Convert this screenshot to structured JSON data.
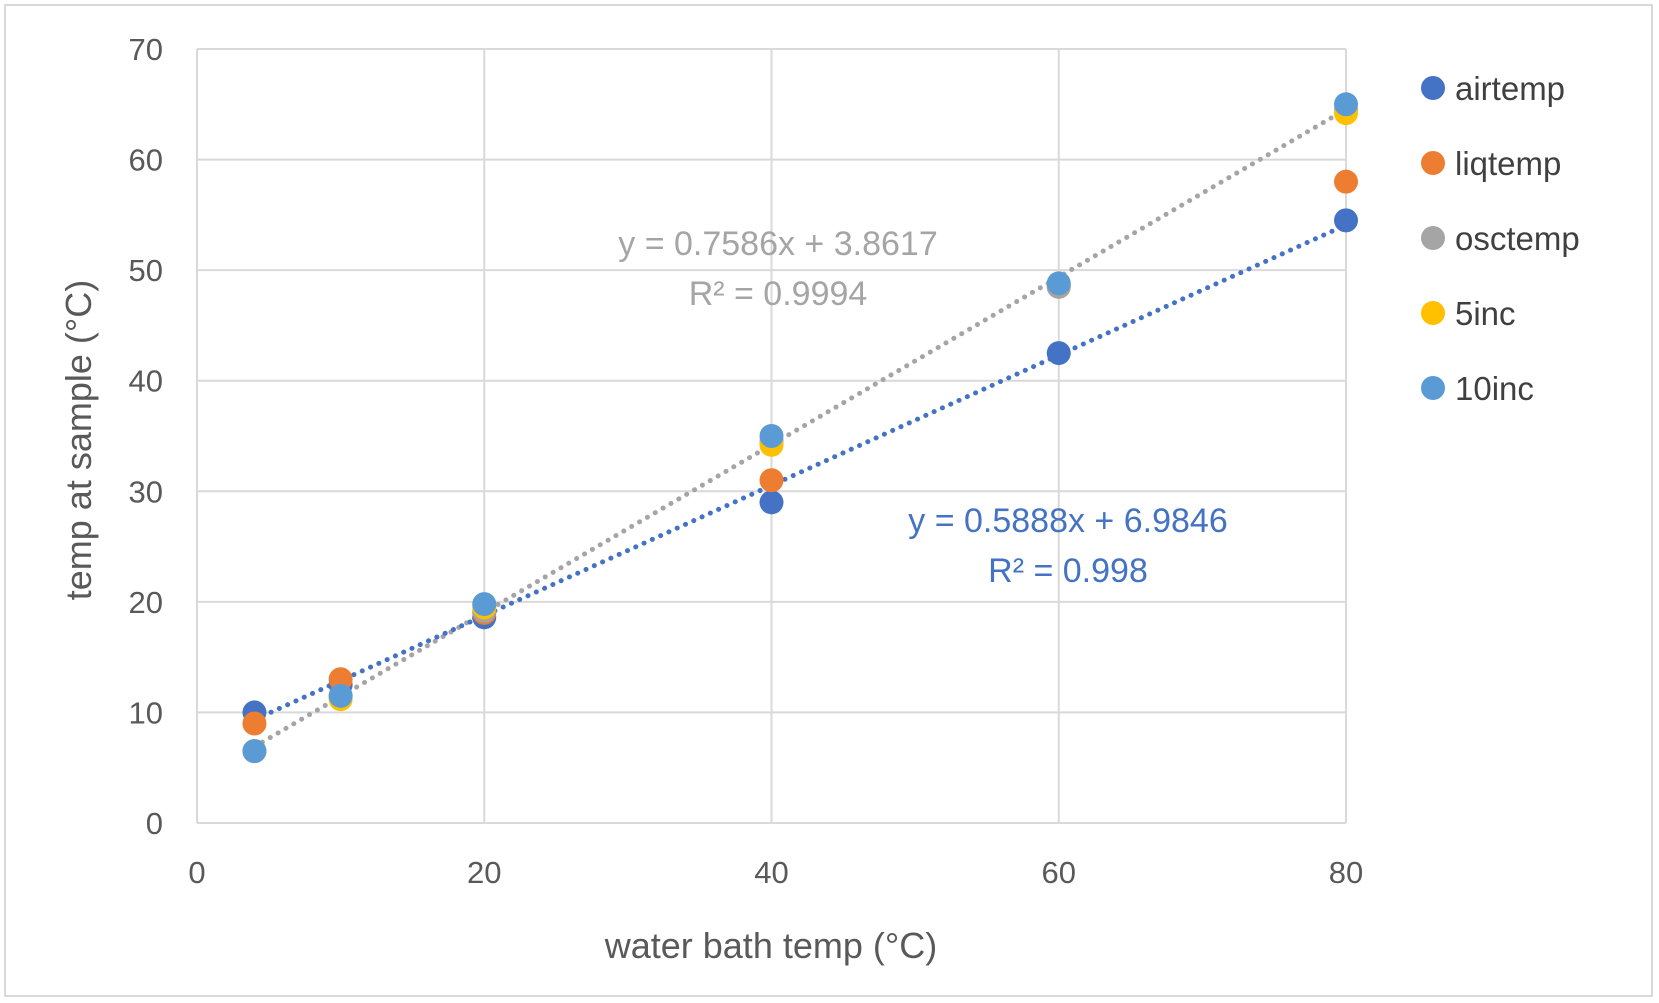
{
  "chart_data": {
    "type": "scatter",
    "title": "",
    "xlabel": "water bath temp (°C)",
    "ylabel": "temp at sample (°C)",
    "xlim": [
      0,
      80
    ],
    "ylim": [
      0,
      70
    ],
    "x_ticks": [
      "0",
      "20",
      "40",
      "60",
      "80"
    ],
    "y_ticks": [
      "0",
      "10",
      "20",
      "30",
      "40",
      "50",
      "60",
      "70"
    ],
    "grid": true,
    "legend_position": "right",
    "series": [
      {
        "name": "airtemp",
        "color": "#4472c4",
        "x": [
          4,
          10,
          20,
          40,
          60,
          80
        ],
        "y": [
          10,
          12.5,
          18.6,
          29,
          42.5,
          54.5
        ]
      },
      {
        "name": "liqtemp",
        "color": "#ed7d31",
        "x": [
          4,
          10,
          20,
          40,
          60,
          80
        ],
        "y": [
          9,
          13,
          19,
          31,
          48.5,
          58
        ]
      },
      {
        "name": "osctemp",
        "color": "#a5a5a5",
        "x": [
          4,
          10,
          20,
          40,
          60,
          80
        ],
        "y": [
          6.5,
          11.5,
          19.2,
          34.5,
          48.5,
          64.5
        ]
      },
      {
        "name": "5inc",
        "color": "#ffc000",
        "x": [
          4,
          10,
          20,
          40,
          60,
          80
        ],
        "y": [
          6.5,
          11.2,
          19.5,
          34.2,
          48.8,
          64.2
        ]
      },
      {
        "name": "10inc",
        "color": "#5b9bd5",
        "x": [
          4,
          10,
          20,
          40,
          60,
          80
        ],
        "y": [
          6.5,
          11.5,
          19.8,
          35,
          48.8,
          65
        ]
      }
    ],
    "trendlines": [
      {
        "series": "osctemp",
        "color": "#a5a5a5",
        "slope": 0.7586,
        "intercept": 3.8617,
        "x_range": [
          4,
          80
        ],
        "equation": "y = 0.7586x + 3.8617",
        "r2": "R² = 0.9994"
      },
      {
        "series": "airtemp",
        "color": "#4472c4",
        "slope": 0.5888,
        "intercept": 6.9846,
        "x_range": [
          4,
          80
        ],
        "equation": "y = 0.5888x + 6.9846",
        "r2": "R² = 0.998"
      }
    ]
  }
}
